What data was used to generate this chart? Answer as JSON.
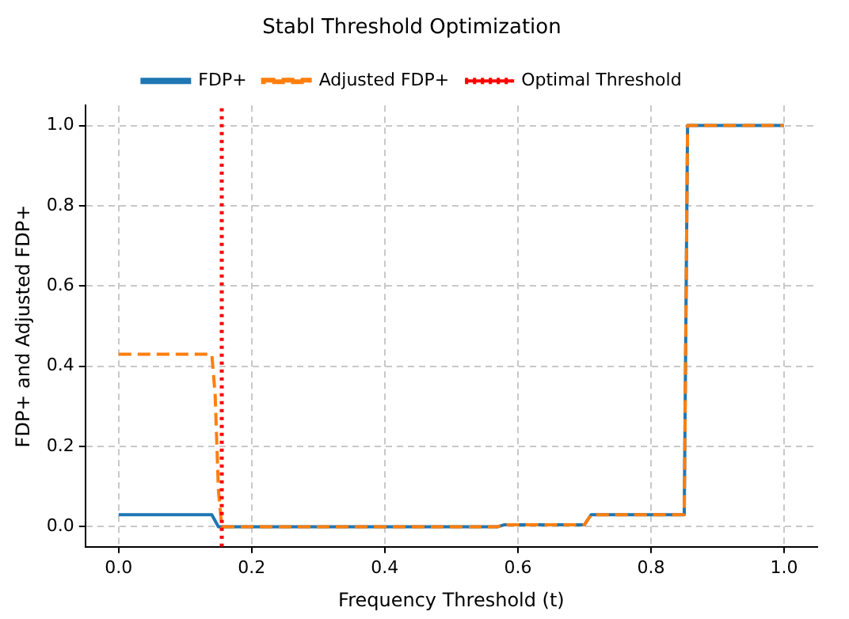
{
  "chart_data": {
    "type": "line",
    "title": "Stabl Threshold Optimization",
    "xlabel": "Frequency Threshold (t)",
    "ylabel": "FDP+ and Adjusted FDP+",
    "xlim": [
      -0.05,
      1.05
    ],
    "xticks": [
      {
        "value": 0,
        "label": "0.0"
      },
      {
        "value": 0.2,
        "label": "0.2"
      },
      {
        "value": 0.4,
        "label": "0.4"
      },
      {
        "value": 0.6,
        "label": "0.6"
      },
      {
        "value": 0.8,
        "label": "0.8"
      },
      {
        "value": 1,
        "label": "1.0"
      }
    ],
    "ylim": [
      -0.05,
      1.05
    ],
    "yticks": [
      {
        "value": 0,
        "label": "0.0"
      },
      {
        "value": 0.2,
        "label": "0.2"
      },
      {
        "value": 0.4,
        "label": "0.4"
      },
      {
        "value": 0.6,
        "label": "0.6"
      },
      {
        "value": 0.8,
        "label": "0.8"
      },
      {
        "value": 1,
        "label": "1.0"
      }
    ],
    "grid": true,
    "legend": "top",
    "marker": "none",
    "series": [
      {
        "name": "FDP+",
        "color": "#1f77b4",
        "line_style": "solid",
        "x": [
          0,
          0.14,
          0.15,
          0.57,
          0.58,
          0.7,
          0.71,
          0.85,
          0.855,
          1.0
        ],
        "values": [
          0.03,
          0.03,
          0,
          0,
          0.005,
          0.005,
          0.03,
          0.03,
          1,
          1
        ]
      },
      {
        "name": "Adjusted FDP+",
        "color": "#ff7f0e",
        "line_style": "dashed",
        "x": [
          0,
          0.14,
          0.145,
          0.15,
          0.155,
          0.57,
          0.58,
          0.7,
          0.71,
          0.85,
          0.855,
          1.0
        ],
        "values": [
          0.43,
          0.43,
          0.33,
          0.09,
          0,
          0,
          0.005,
          0.005,
          0.03,
          0.03,
          1,
          1
        ]
      }
    ],
    "ref_lines": [
      {
        "axis": "x",
        "value": 0.155,
        "label": "Optimal Threshold",
        "color": "#ff0000",
        "line_style": "dotted"
      }
    ]
  }
}
